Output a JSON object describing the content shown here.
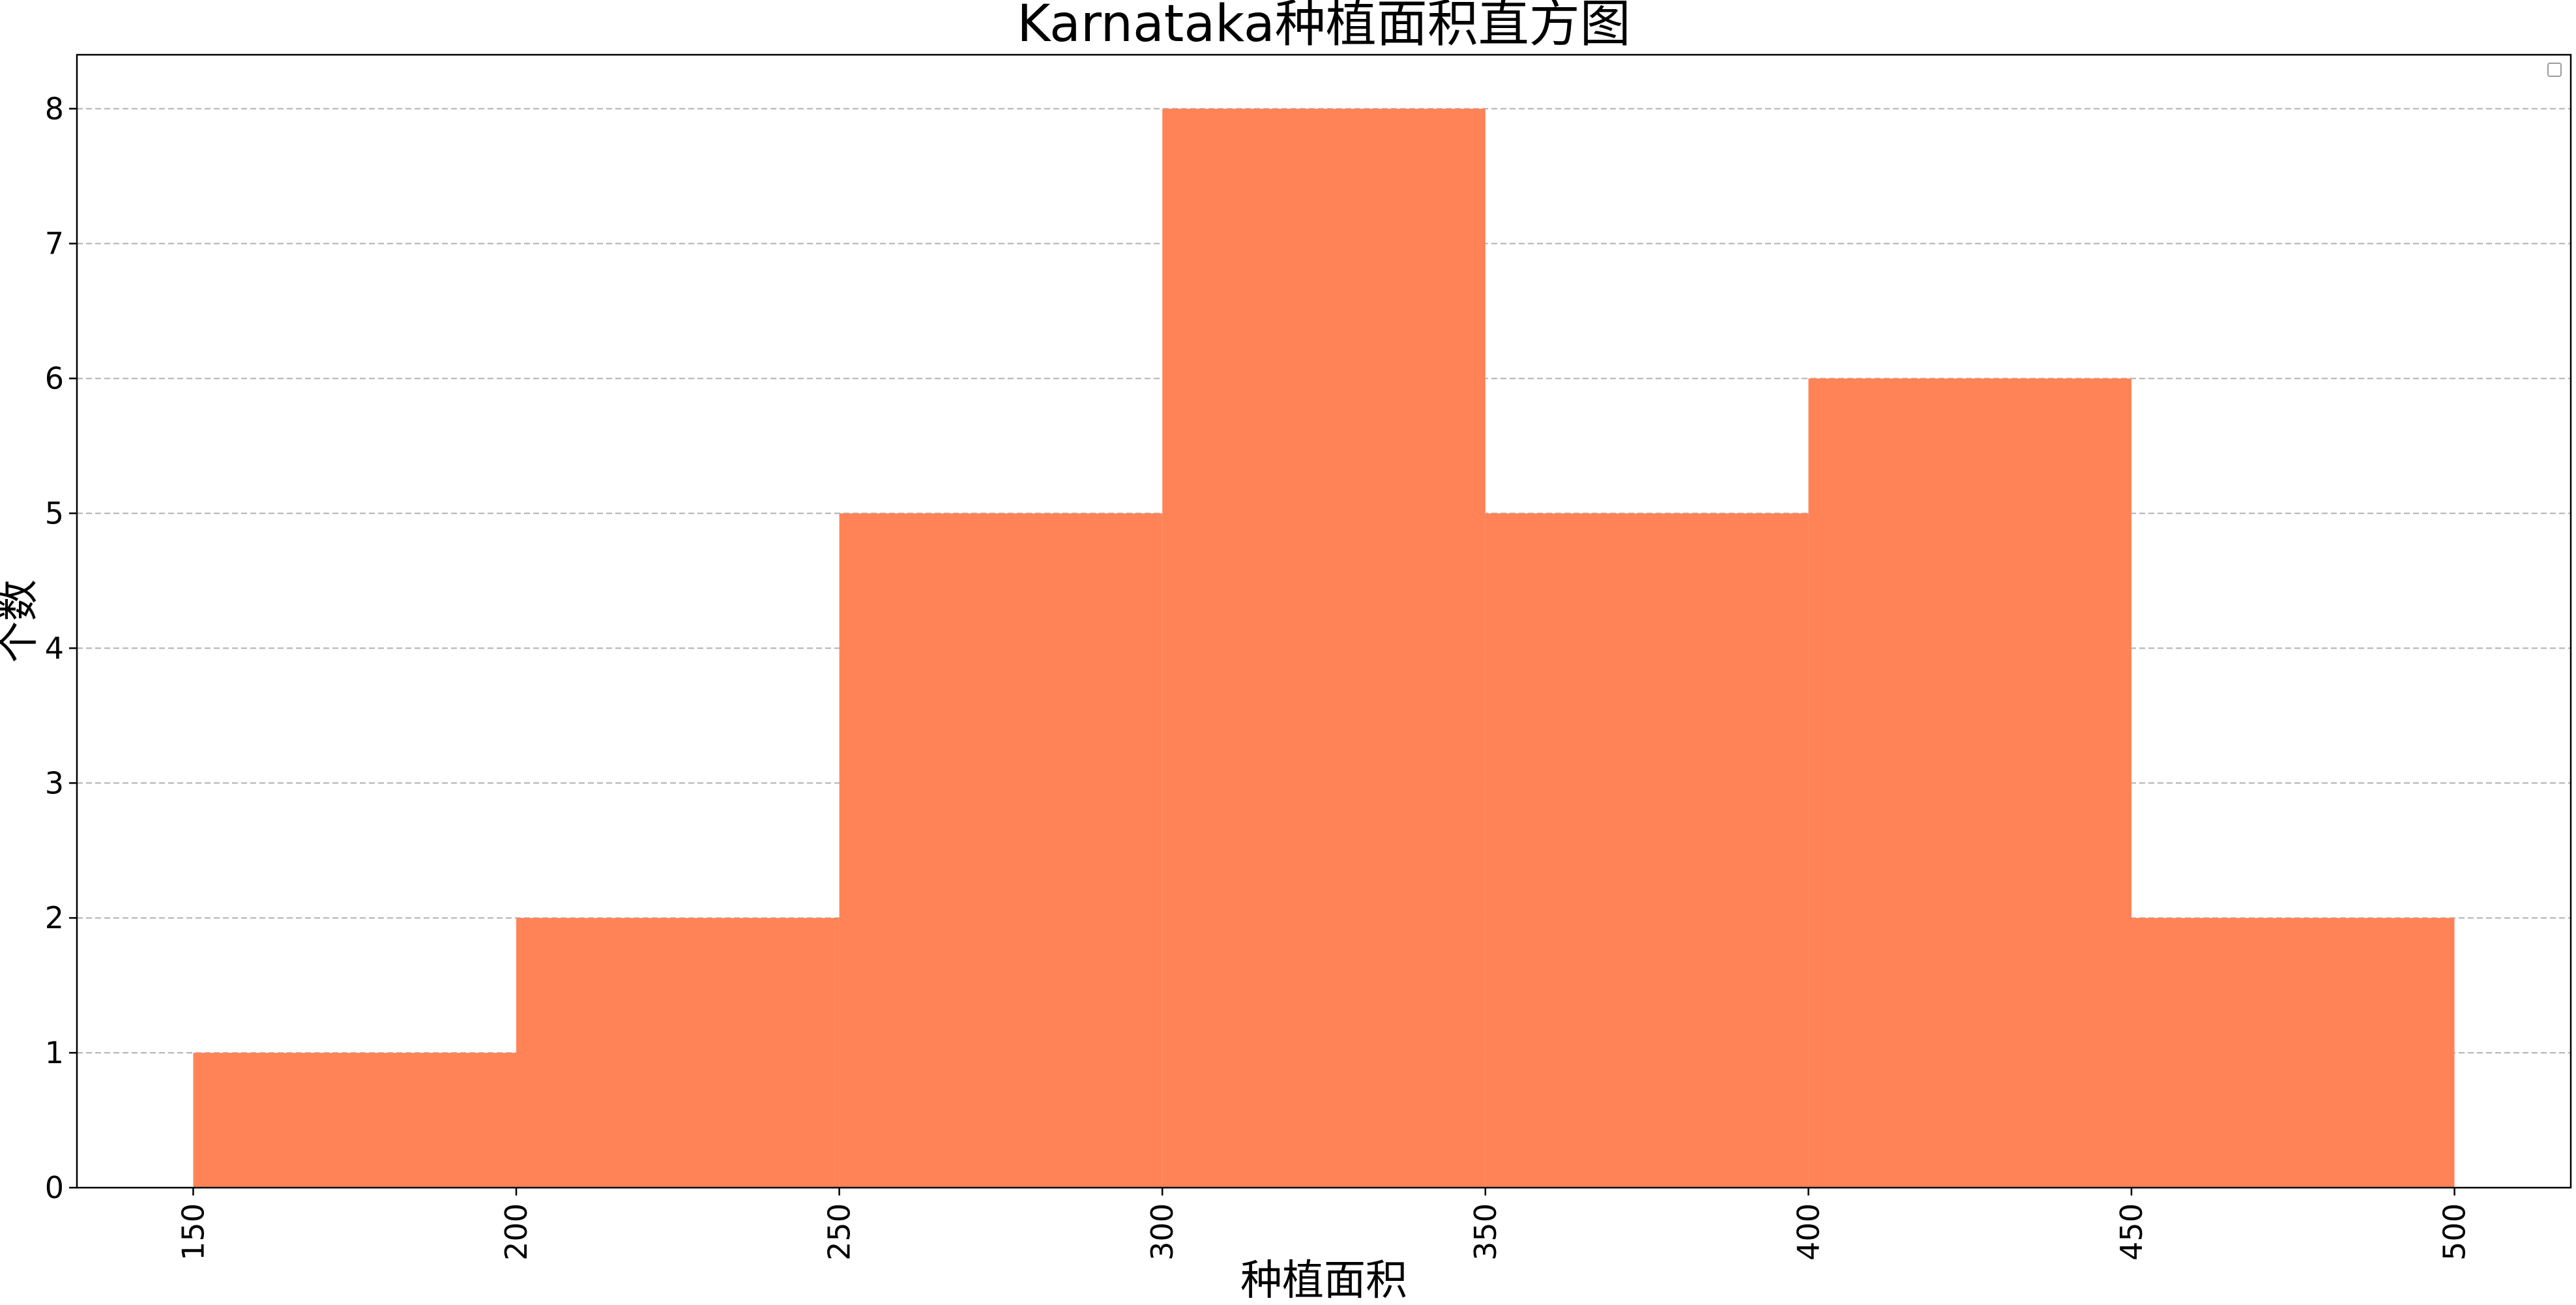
{
  "chart_data": {
    "type": "histogram",
    "title": "Karnataka种植面积直方图",
    "xlabel": "种植面积",
    "ylabel": "个数",
    "bins": [
      {
        "x0": 150,
        "x1": 200,
        "count": 1
      },
      {
        "x0": 200,
        "x1": 250,
        "count": 2
      },
      {
        "x0": 250,
        "x1": 300,
        "count": 5
      },
      {
        "x0": 300,
        "x1": 350,
        "count": 8
      },
      {
        "x0": 350,
        "x1": 400,
        "count": 5
      },
      {
        "x0": 400,
        "x1": 450,
        "count": 6
      },
      {
        "x0": 450,
        "x1": 500,
        "count": 2
      }
    ],
    "xlim": [
      132,
      518
    ],
    "ylim": [
      0,
      8.4
    ],
    "xticks": [
      "150",
      "200",
      "250",
      "300",
      "350",
      "400",
      "450",
      "500"
    ],
    "yticks": [
      "0",
      "1",
      "2",
      "3",
      "4",
      "5",
      "6",
      "7",
      "8"
    ],
    "grid": "horizontal dashed",
    "bar_color": "#ff8356",
    "grid_color": "#b0b0b0",
    "legend": "top-right (empty)"
  }
}
